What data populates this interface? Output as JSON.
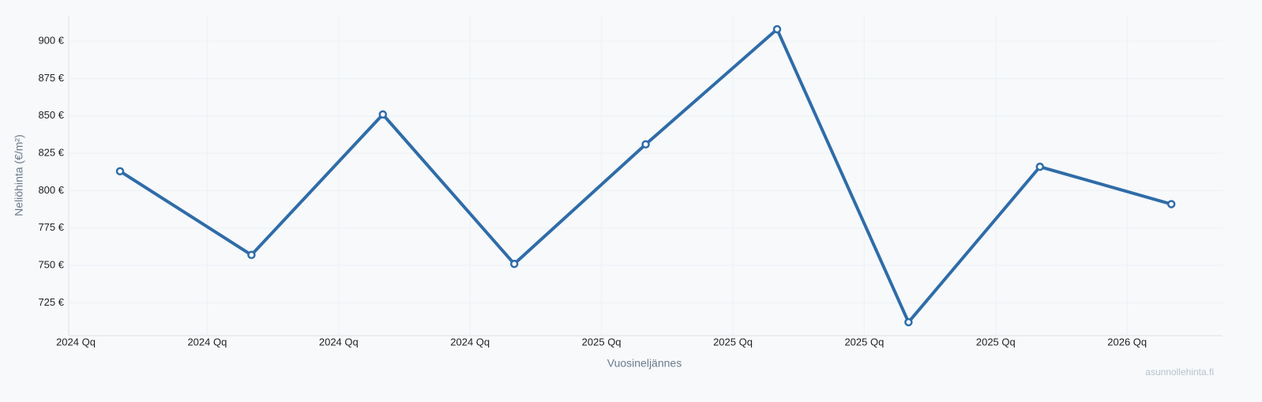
{
  "chart_data": {
    "type": "line",
    "x_label": "Vuosineljännes",
    "y_label": "Neliöhinta (€/m²)",
    "watermark": "asunnollehinta.fi",
    "categories": [
      "2024 Qq",
      "2024 Qq",
      "2024 Qq",
      "2024 Qq",
      "2025 Qq",
      "2025 Qq",
      "2025 Qq",
      "2025 Qq",
      "2026 Qq"
    ],
    "series": [
      {
        "name": "Neliöhinta",
        "color": "#2f6ca8",
        "values": [
          813,
          757,
          851,
          751,
          831,
          908,
          712,
          816,
          791
        ]
      }
    ],
    "ylim": [
      703,
      917
    ],
    "yticks": [
      {
        "value": 725,
        "label": "725 €"
      },
      {
        "value": 750,
        "label": "750 €"
      },
      {
        "value": 775,
        "label": "775 €"
      },
      {
        "value": 800,
        "label": "800 €"
      },
      {
        "value": 825,
        "label": "825 €"
      },
      {
        "value": 850,
        "label": "850 €"
      },
      {
        "value": 875,
        "label": "875 €"
      },
      {
        "value": 900,
        "label": "900 €"
      }
    ],
    "grid": true
  }
}
